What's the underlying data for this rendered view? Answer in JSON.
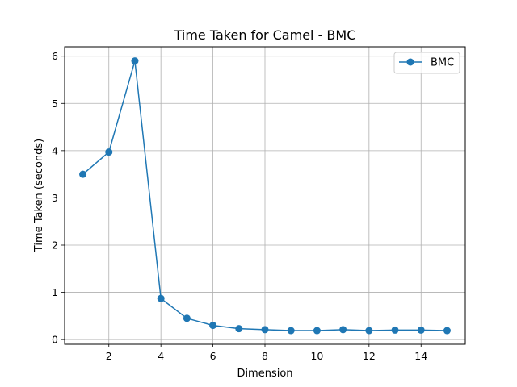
{
  "chart_data": {
    "type": "line",
    "title": "Time Taken for Camel - BMC",
    "xlabel": "Dimension",
    "ylabel": "Time Taken (seconds)",
    "xlim": [
      0.3,
      15.7
    ],
    "ylim": [
      -0.1,
      6.2
    ],
    "xticks": [
      2,
      4,
      6,
      8,
      10,
      12,
      14
    ],
    "yticks": [
      0,
      1,
      2,
      3,
      4,
      5,
      6
    ],
    "grid": true,
    "legend_position": "top-right",
    "x": [
      1,
      2,
      3,
      4,
      5,
      6,
      7,
      8,
      9,
      10,
      11,
      12,
      13,
      14,
      15
    ],
    "series": [
      {
        "name": "BMC",
        "color": "#1f77b4",
        "marker": "circle",
        "values": [
          3.5,
          3.97,
          5.9,
          0.87,
          0.45,
          0.3,
          0.23,
          0.21,
          0.19,
          0.19,
          0.21,
          0.19,
          0.2,
          0.2,
          0.19
        ]
      }
    ]
  }
}
